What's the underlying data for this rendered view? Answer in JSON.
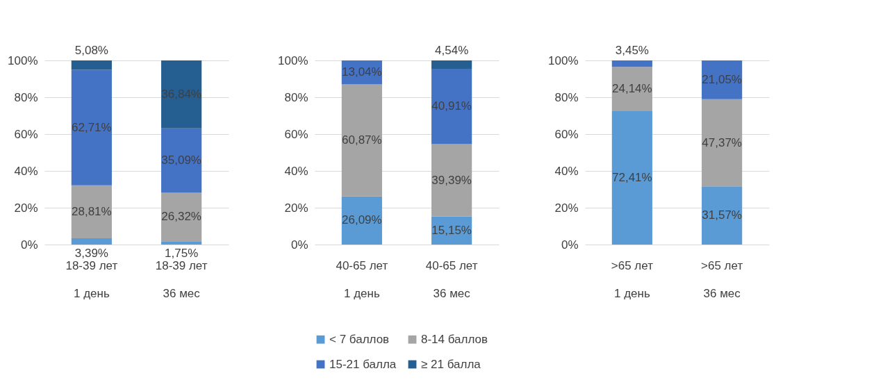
{
  "chart_data": [
    {
      "type": "bar",
      "stacked": true,
      "categories": [
        "18-39 лет\n1 день",
        "18-39 лет\n36 мес"
      ],
      "ylim": [
        0,
        100
      ],
      "yticks": [
        {
          "value": 0,
          "label": "0%"
        },
        {
          "value": 20,
          "label": "20%"
        },
        {
          "value": 40,
          "label": "40%"
        },
        {
          "value": 60,
          "label": "60%"
        },
        {
          "value": 80,
          "label": "80%"
        },
        {
          "value": 100,
          "label": "100%"
        }
      ],
      "grid": "y",
      "series": [
        {
          "color": "#5b9bd5",
          "values": [
            3.39,
            1.75
          ],
          "value_labels": [
            "3,39%",
            "1,75%"
          ]
        },
        {
          "color": "#a5a5a5",
          "values": [
            28.81,
            26.32
          ],
          "value_labels": [
            "28,81%",
            "26,32%"
          ]
        },
        {
          "color": "#4472c4",
          "values": [
            62.71,
            35.09
          ],
          "value_labels": [
            "62,71%",
            "35,09%"
          ]
        },
        {
          "color": "#255e91",
          "values": [
            5.08,
            36.84
          ],
          "value_labels": [
            "5,08%",
            "36,84%"
          ]
        }
      ]
    },
    {
      "type": "bar",
      "stacked": true,
      "categories": [
        "40-65 лет\n1 день",
        "40-65 лет\n36 мес"
      ],
      "ylim": [
        0,
        100
      ],
      "yticks": [
        {
          "value": 0,
          "label": "0%"
        },
        {
          "value": 20,
          "label": "20%"
        },
        {
          "value": 40,
          "label": "40%"
        },
        {
          "value": 60,
          "label": "60%"
        },
        {
          "value": 80,
          "label": "80%"
        },
        {
          "value": 100,
          "label": "100%"
        }
      ],
      "grid": "y",
      "legend": "bottom",
      "series": [
        {
          "name": "< 7 баллов",
          "color": "#5b9bd5",
          "values": [
            26.09,
            15.15
          ],
          "value_labels": [
            "26,09%",
            "15,15%"
          ]
        },
        {
          "name": "8-14 баллов",
          "color": "#a5a5a5",
          "values": [
            60.87,
            39.39
          ],
          "value_labels": [
            "60,87%",
            "39,39%"
          ]
        },
        {
          "name": "15-21 балла",
          "color": "#4472c4",
          "values": [
            13.04,
            40.91
          ],
          "value_labels": [
            "13,04%",
            "40,91%"
          ]
        },
        {
          "name": "≥ 21 балла",
          "color": "#255e91",
          "values": [
            null,
            4.54
          ],
          "value_labels": [
            null,
            "4,54%"
          ]
        }
      ]
    },
    {
      "type": "bar",
      "stacked": true,
      "categories": [
        ">65 лет\n1 день",
        ">65 лет\n36 мес"
      ],
      "ylim": [
        0,
        100
      ],
      "yticks": [
        {
          "value": 0,
          "label": "0%"
        },
        {
          "value": 20,
          "label": "20%"
        },
        {
          "value": 40,
          "label": "40%"
        },
        {
          "value": 60,
          "label": "60%"
        },
        {
          "value": 80,
          "label": "80%"
        },
        {
          "value": 100,
          "label": "100%"
        }
      ],
      "grid": "y",
      "series": [
        {
          "color": "#5b9bd5",
          "values": [
            72.41,
            31.57
          ],
          "value_labels": [
            "72,41%",
            "31,57%"
          ]
        },
        {
          "color": "#a5a5a5",
          "values": [
            24.14,
            47.37
          ],
          "value_labels": [
            "24,14%",
            "47,37%"
          ]
        },
        {
          "color": "#4472c4",
          "values": [
            3.45,
            21.05
          ],
          "value_labels": [
            "3,45%",
            "21,05%"
          ]
        }
      ]
    }
  ]
}
